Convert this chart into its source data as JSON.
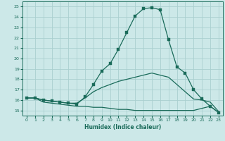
{
  "xlabel": "Humidex (Indice chaleur)",
  "bg_color": "#cce8e8",
  "line_color": "#1a6b5a",
  "grid_color": "#aacfcf",
  "xlim": [
    -0.5,
    23.5
  ],
  "ylim": [
    14.5,
    25.5
  ],
  "yticks": [
    15,
    16,
    17,
    18,
    19,
    20,
    21,
    22,
    23,
    24,
    25
  ],
  "xticks": [
    0,
    1,
    2,
    3,
    4,
    5,
    6,
    7,
    8,
    9,
    10,
    11,
    12,
    13,
    14,
    15,
    16,
    17,
    18,
    19,
    20,
    21,
    22,
    23
  ],
  "series": [
    {
      "x": [
        0,
        1,
        2,
        3,
        4,
        5,
        6,
        7,
        8,
        9,
        10,
        11,
        12,
        13,
        14,
        15,
        16,
        17,
        18,
        19,
        20,
        21,
        22,
        23
      ],
      "y": [
        16.2,
        16.2,
        15.8,
        15.7,
        15.6,
        15.5,
        15.4,
        15.4,
        15.3,
        15.3,
        15.2,
        15.1,
        15.1,
        15.0,
        15.0,
        15.0,
        15.0,
        15.0,
        15.0,
        15.0,
        15.0,
        15.2,
        15.4,
        14.8
      ],
      "marker": null,
      "lw": 0.9
    },
    {
      "x": [
        0,
        1,
        2,
        3,
        4,
        5,
        6,
        7,
        8,
        9,
        10,
        11,
        12,
        13,
        14,
        15,
        16,
        17,
        18,
        19,
        20,
        21,
        22,
        23
      ],
      "y": [
        16.2,
        16.2,
        16.0,
        15.9,
        15.8,
        15.7,
        15.7,
        16.2,
        16.8,
        17.2,
        17.5,
        17.8,
        18.0,
        18.2,
        18.4,
        18.6,
        18.4,
        18.2,
        17.5,
        16.8,
        16.1,
        16.0,
        15.8,
        14.9
      ],
      "marker": null,
      "lw": 0.9
    },
    {
      "x": [
        0,
        1,
        2,
        3,
        4,
        5,
        6,
        7,
        8,
        9,
        10,
        11,
        12,
        13,
        14,
        15,
        16,
        17,
        18,
        19,
        20,
        21,
        22,
        23
      ],
      "y": [
        16.2,
        16.2,
        16.0,
        15.9,
        15.8,
        15.7,
        15.6,
        16.3,
        17.5,
        18.8,
        19.5,
        20.9,
        22.5,
        24.1,
        24.8,
        24.9,
        24.7,
        21.8,
        19.2,
        18.6,
        17.0,
        16.1,
        15.4,
        14.8
      ],
      "marker": "s",
      "markersize": 2.5,
      "lw": 0.9
    }
  ]
}
